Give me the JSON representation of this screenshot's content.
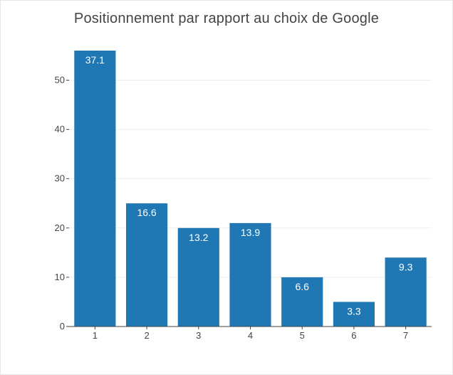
{
  "chart_data": {
    "type": "bar",
    "title": "Positionnement par rapport au choix de Google",
    "xlabel": "",
    "ylabel": "",
    "categories": [
      "1",
      "2",
      "3",
      "4",
      "5",
      "6",
      "7"
    ],
    "values": [
      56,
      25,
      20,
      21,
      10,
      5,
      14
    ],
    "data_labels": [
      "37.1",
      "16.6",
      "13.2",
      "13.9",
      "6.6",
      "3.3",
      "9.3"
    ],
    "ylim": [
      0,
      56
    ],
    "yticks": [
      0,
      10,
      20,
      30,
      40,
      50
    ],
    "grid": true,
    "legend": "none",
    "colors": {
      "bar": "#1f77b4",
      "grid": "#eeeeee",
      "axis": "#444444",
      "label": "#ffffff"
    }
  }
}
